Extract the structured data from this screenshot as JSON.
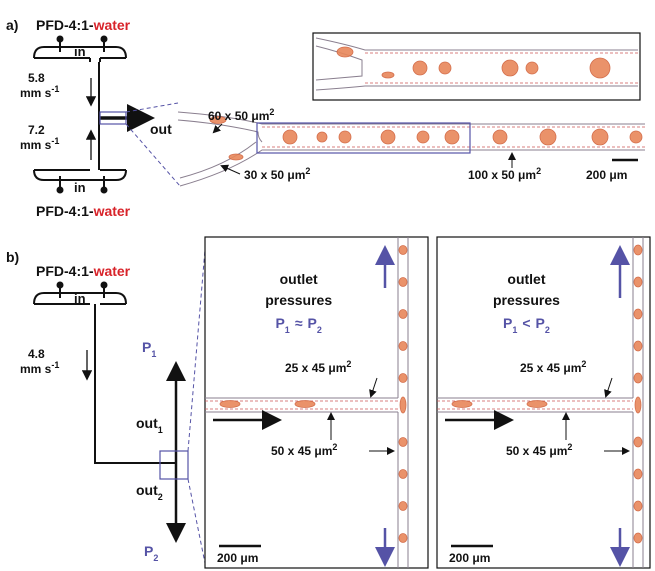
{
  "panel_a": {
    "label": "a)",
    "fluid_top": {
      "prefix": "PFD-4:1-",
      "highlight": "water"
    },
    "inlet_top": "in",
    "flow_top": {
      "speed": "5.8",
      "unit": "mm s",
      "exponent": "-1"
    },
    "flow_bottom": {
      "speed": "7.2",
      "unit": "mm s",
      "exponent": "-1"
    },
    "inlet_bottom": "in",
    "fluid_bottom": {
      "prefix": "PFD-4:1-",
      "highlight": "water"
    },
    "outlet": "out",
    "channel_top": {
      "size": "60 x 50 μm",
      "exponent": "2"
    },
    "channel_bottom": {
      "size": "30 x 50 μm",
      "exponent": "2"
    },
    "channel_main": {
      "size": "100 x 50 μm",
      "exponent": "2"
    },
    "scale_bar": "200 μm"
  },
  "panel_b": {
    "label": "b)",
    "fluid": {
      "prefix": "PFD-4:1-",
      "highlight": "water"
    },
    "inlet": "in",
    "flow": {
      "speed": "4.8",
      "unit": "mm s",
      "exponent": "-1"
    },
    "pressure_1": {
      "symbol": "P",
      "subscript": "1"
    },
    "outlet_1": {
      "name": "out",
      "subscript": "1"
    },
    "outlet_2": {
      "name": "out",
      "subscript": "2"
    },
    "pressure_2": {
      "symbol": "P",
      "subscript": "2"
    },
    "insets": [
      {
        "title": [
          "outlet",
          "pressures"
        ],
        "relation": {
          "left": "P",
          "left_subscript": "1",
          "operator": "≈",
          "right": "P",
          "right_subscript": "2"
        },
        "channel_narrow": {
          "size": "25 x 45 μm",
          "exponent": "2"
        },
        "channel_wide": {
          "size": "50 x 45 μm",
          "exponent": "2"
        },
        "scale_bar": "200 μm"
      },
      {
        "title": [
          "outlet",
          "pressures"
        ],
        "relation": {
          "left": "P",
          "left_subscript": "1",
          "operator": "<",
          "right": "P",
          "right_subscript": "2"
        },
        "channel_narrow": {
          "size": "25 x 45 μm",
          "exponent": "2"
        },
        "channel_wide": {
          "size": "50 x 45 μm",
          "exponent": "2"
        },
        "scale_bar": "200 μm"
      }
    ]
  }
}
